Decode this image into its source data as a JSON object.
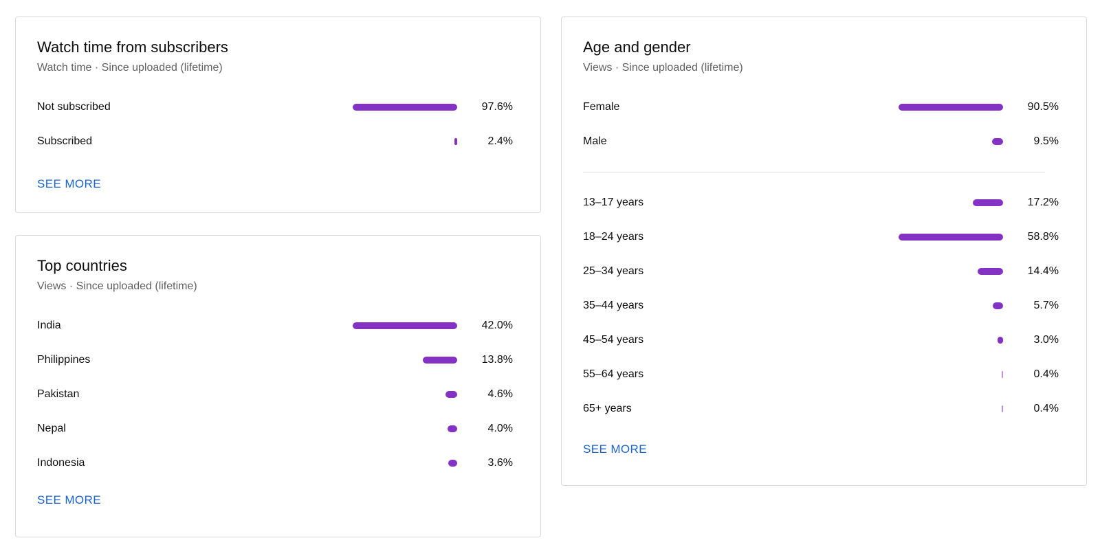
{
  "watch_time": {
    "title": "Watch time from subscribers",
    "subtitle": "Watch time · Since uploaded (lifetime)",
    "rows": [
      {
        "label": "Not subscribed",
        "value": "97.6%",
        "fraction": 0.976
      },
      {
        "label": "Subscribed",
        "value": "2.4%",
        "fraction": 0.024
      }
    ],
    "see_more": "SEE MORE"
  },
  "top_countries": {
    "title": "Top countries",
    "subtitle": "Views · Since uploaded (lifetime)",
    "rows": [
      {
        "label": "India",
        "value": "42.0%",
        "fraction": 0.42
      },
      {
        "label": "Philippines",
        "value": "13.8%",
        "fraction": 0.138
      },
      {
        "label": "Pakistan",
        "value": "4.6%",
        "fraction": 0.046
      },
      {
        "label": "Nepal",
        "value": "4.0%",
        "fraction": 0.04
      },
      {
        "label": "Indonesia",
        "value": "3.6%",
        "fraction": 0.036
      }
    ],
    "see_more": "SEE MORE"
  },
  "age_gender": {
    "title": "Age and gender",
    "subtitle": "Views · Since uploaded (lifetime)",
    "gender_rows": [
      {
        "label": "Female",
        "value": "90.5%",
        "fraction": 0.905
      },
      {
        "label": "Male",
        "value": "9.5%",
        "fraction": 0.095
      }
    ],
    "age_rows": [
      {
        "label": "13–17 years",
        "value": "17.2%",
        "fraction": 0.172
      },
      {
        "label": "18–24 years",
        "value": "58.8%",
        "fraction": 0.588
      },
      {
        "label": "25–34 years",
        "value": "14.4%",
        "fraction": 0.144
      },
      {
        "label": "35–44 years",
        "value": "5.7%",
        "fraction": 0.057
      },
      {
        "label": "45–54 years",
        "value": "3.0%",
        "fraction": 0.03
      },
      {
        "label": "55–64 years",
        "value": "0.4%",
        "fraction": 0.004
      },
      {
        "label": "65+ years",
        "value": "0.4%",
        "fraction": 0.004
      }
    ],
    "see_more": "SEE MORE"
  },
  "colors": {
    "bar": "#8432c3",
    "link": "#1a63d1"
  }
}
